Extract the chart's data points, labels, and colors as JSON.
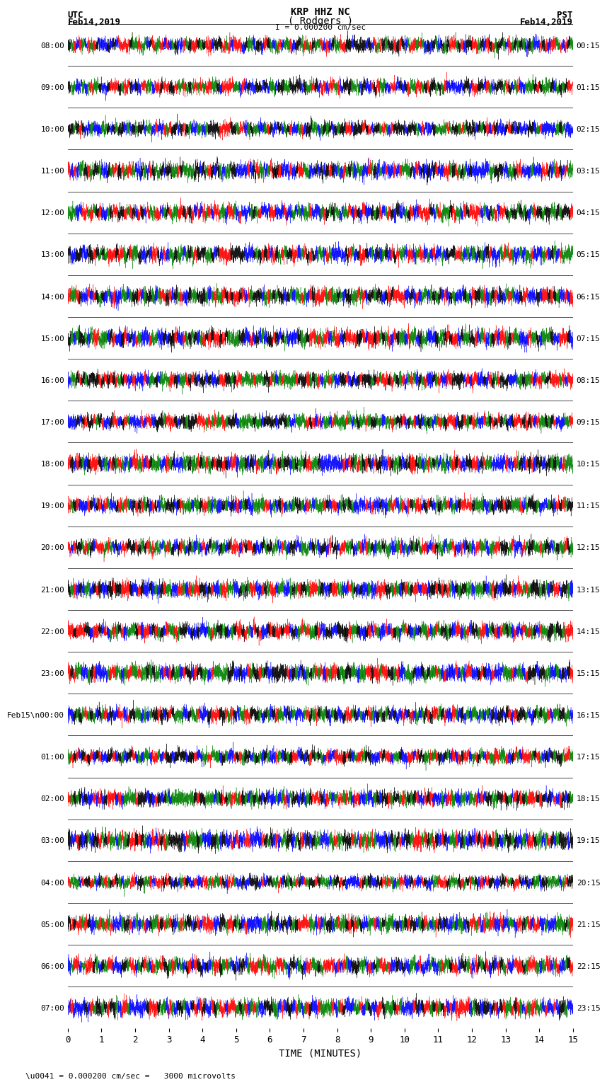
{
  "title_line1": "KRP HHZ NC",
  "title_line2": "( Rodgers )",
  "scale_label": "I = 0.000200 cm/sec",
  "left_label": "UTC",
  "left_date": "Feb14,2019",
  "right_label": "PST",
  "right_date": "Feb14,2019",
  "xlabel": "TIME (MINUTES)",
  "bottom_note": "\\u0041 = 0.000200 cm/sec =   3000 microvolts",
  "left_times": [
    "08:00",
    "09:00",
    "10:00",
    "11:00",
    "12:00",
    "13:00",
    "14:00",
    "15:00",
    "16:00",
    "17:00",
    "18:00",
    "19:00",
    "20:00",
    "21:00",
    "22:00",
    "23:00",
    "Feb15\\n00:00",
    "01:00",
    "02:00",
    "03:00",
    "04:00",
    "05:00",
    "06:00",
    "07:00"
  ],
  "right_times": [
    "00:15",
    "01:15",
    "02:15",
    "03:15",
    "04:15",
    "05:15",
    "06:15",
    "07:15",
    "08:15",
    "09:15",
    "10:15",
    "11:15",
    "12:15",
    "13:15",
    "14:15",
    "15:15",
    "16:15",
    "17:15",
    "18:15",
    "19:15",
    "20:15",
    "21:15",
    "22:15",
    "23:15"
  ],
  "n_rows": 24,
  "x_ticks": [
    0,
    1,
    2,
    3,
    4,
    5,
    6,
    7,
    8,
    9,
    10,
    11,
    12,
    13,
    14,
    15
  ],
  "bg_color": "#ffffff",
  "seismo_colors": [
    "#ff0000",
    "#0000ff",
    "#008000",
    "#000000"
  ],
  "figwidth": 8.5,
  "figheight": 16.13,
  "seed": 42
}
